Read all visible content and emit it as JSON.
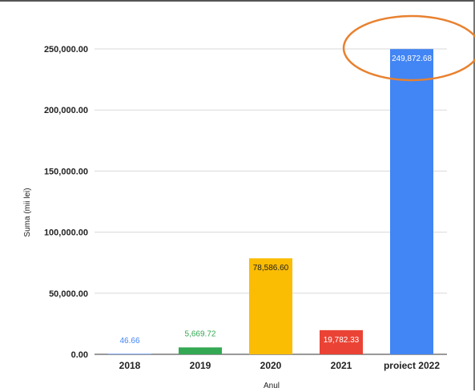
{
  "chart_data": {
    "type": "bar",
    "title": "",
    "xlabel": "Anul",
    "ylabel": "Suma (mii lei)",
    "categories": [
      "2018",
      "2019",
      "2020",
      "2021",
      "proiect 2022"
    ],
    "values": [
      46.66,
      5669.72,
      78586.6,
      19782.33,
      249872.68
    ],
    "value_labels": [
      "46.66",
      "5,669.72",
      "78,586.60",
      "19,782.33",
      "249,872.68"
    ],
    "colors": [
      "#4285f4",
      "#34a853",
      "#fbbc04",
      "#ea4335",
      "#4285f4"
    ],
    "label_colors": [
      "#4285f4",
      "#34a853",
      "#222222",
      "#ffffff",
      "#ffffff"
    ],
    "label_inside": [
      false,
      false,
      true,
      true,
      true
    ],
    "ylim": [
      0,
      250000
    ],
    "yticks": [
      0,
      50000,
      100000,
      150000,
      200000,
      250000
    ],
    "ytick_labels": [
      "0.00",
      "50,000.00",
      "100,000.00",
      "150,000.00",
      "200,000.00",
      "250,000.00"
    ],
    "grid": true,
    "highlight_ellipse": {
      "color": "#e8812f",
      "target": "proiect 2022"
    }
  }
}
